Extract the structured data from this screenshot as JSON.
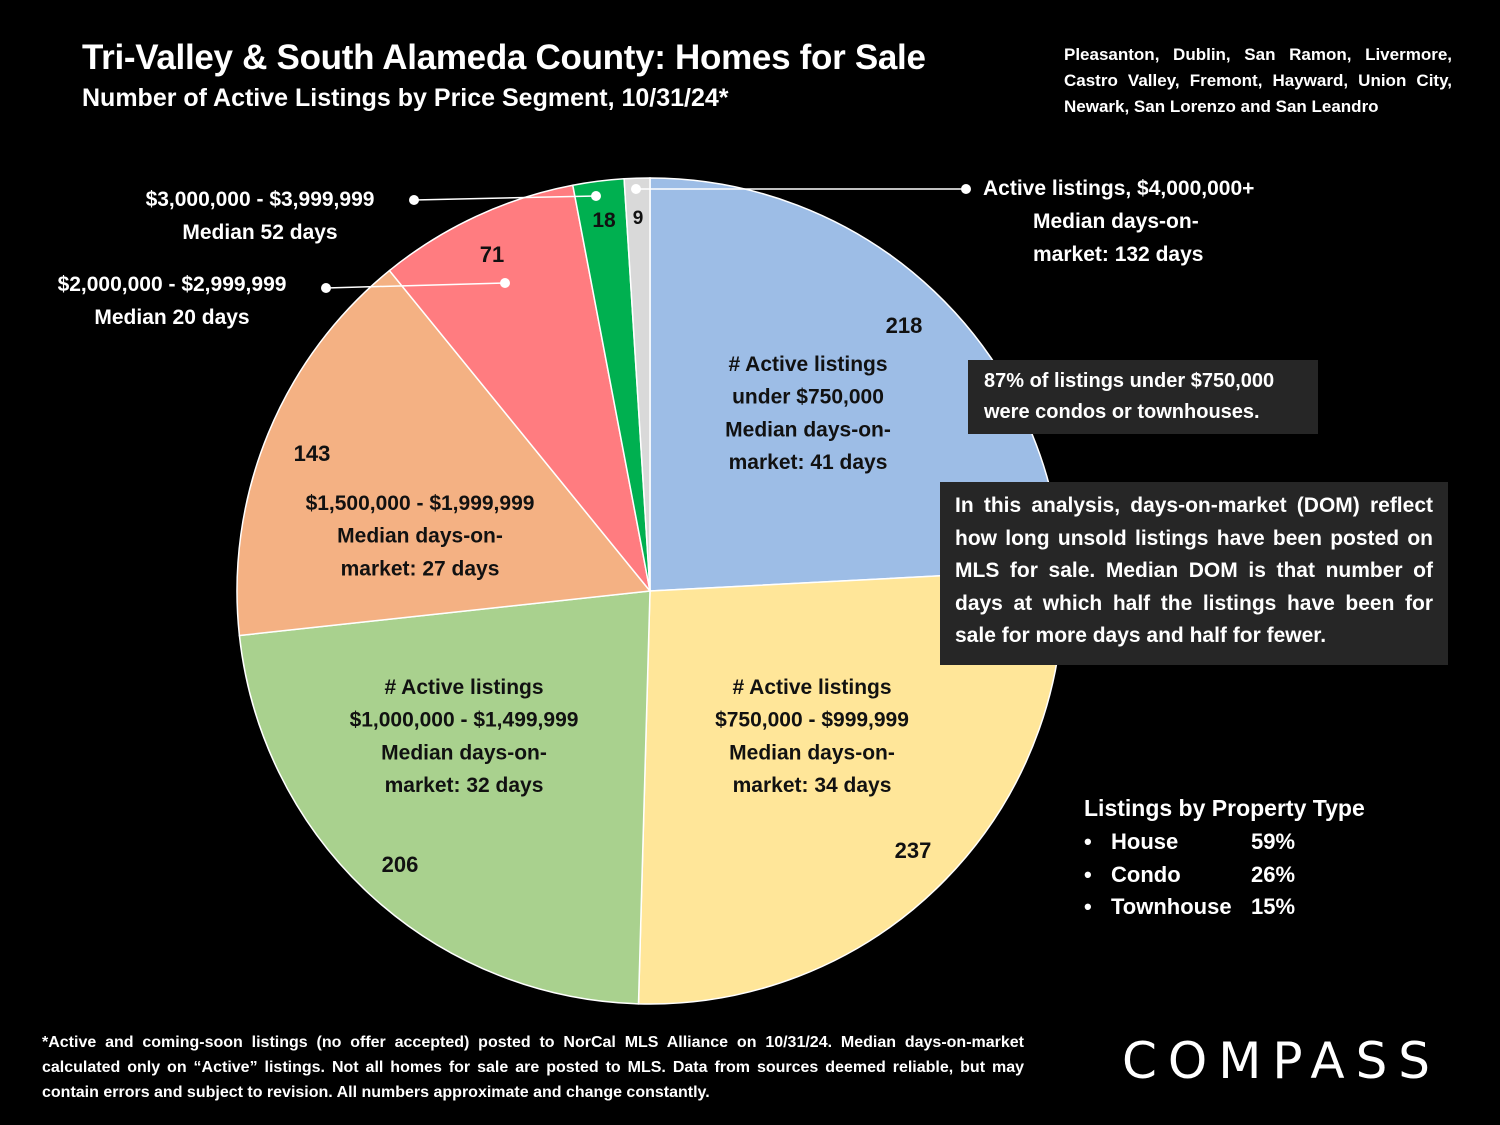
{
  "header": {
    "title": "Tri-Valley & South Alameda County:  Homes for Sale",
    "subtitle": "Number of Active Listings by Price Segment, 10/31/24*",
    "area_note": "Pleasanton, Dublin, San Ramon, Livermore, Castro Valley, Fremont, Hayward, Union City, Newark, San Lorenzo and San Leandro"
  },
  "chart_data": {
    "type": "pie",
    "title": "Number of Active Listings by Price Segment, 10/31/24*",
    "start": "12 o'clock",
    "direction": "clockwise",
    "slices": [
      {
        "category": "under $750,000",
        "value": 218,
        "color": "#9dbde6",
        "label_lines": [
          "# Active listings",
          "under $750,000",
          "Median days-on-",
          "market:  41 days"
        ]
      },
      {
        "category": "$750,000 - $999,999",
        "value": 237,
        "color": "#ffe699",
        "label_lines": [
          "# Active listings",
          "$750,000 - $999,999",
          "Median days-on-",
          "market:  34 days"
        ]
      },
      {
        "category": "$1,000,000 - $1,499,999",
        "value": 206,
        "color": "#a9d18e",
        "label_lines": [
          "# Active listings",
          "$1,000,000 - $1,499,999",
          "Median days-on-",
          "market:  32 days"
        ]
      },
      {
        "category": "$1,500,000 - $1,999,999",
        "value": 143,
        "color": "#f4b183",
        "label_lines": [
          "$1,500,000 - $1,999,999",
          "Median days-on-",
          "market:  27 days"
        ]
      },
      {
        "category": "$2,000,000 - $2,999,999",
        "value": 71,
        "color": "#ff7c80",
        "label_lines": []
      },
      {
        "category": "$3,000,000 - $3,999,999",
        "value": 18,
        "color": "#00b050",
        "label_lines": []
      },
      {
        "category": "$4,000,000+",
        "value": 9,
        "color": "#d9d9d9",
        "label_lines": []
      }
    ],
    "callouts": [
      {
        "slice": 4,
        "lines": [
          "$2,000,000 - $2,999,999",
          "Median 20 days"
        ]
      },
      {
        "slice": 5,
        "lines": [
          "$3,000,000 - $3,999,999",
          "Median 52 days"
        ]
      },
      {
        "slice": 6,
        "lines": [
          "Active listings, $4,000,000+",
          "Median days-on-",
          "market:  132 days"
        ]
      }
    ]
  },
  "notes": {
    "condo_note": "87% of listings under $750,000 were condos or townhouses.",
    "dom_note": "In this analysis, days-on-market (DOM) reflect how long unsold listings have been posted on MLS for sale. Median DOM is that number of days at which half the listings have been for sale for more days and half for fewer."
  },
  "property_types": {
    "title": "Listings by Property Type",
    "items": [
      {
        "name": "House",
        "pct": "59%"
      },
      {
        "name": "Condo",
        "pct": "26%"
      },
      {
        "name": "Townhouse",
        "pct": "15%"
      }
    ]
  },
  "footnote": "*Active and coming-soon listings (no offer accepted) posted to NorCal MLS Alliance on 10/31/24. Median days-on-market calculated only on “Active” listings. Not all homes for sale are posted to MLS. Data from sources deemed reliable, but may contain errors and subject to revision. All numbers approximate and change constantly.",
  "brand": {
    "logo_text": "COMPASS"
  }
}
